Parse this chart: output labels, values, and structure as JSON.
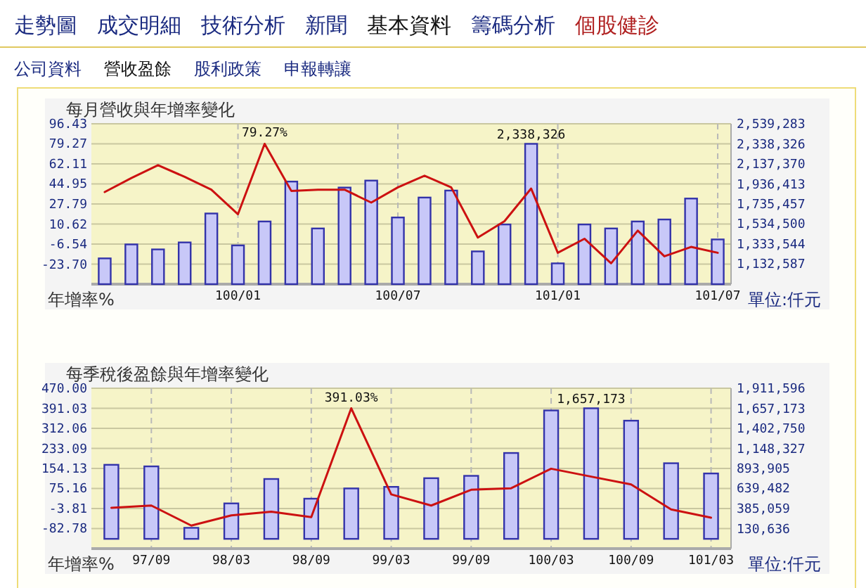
{
  "chart_data": [
    {
      "type": "other",
      "annotations": [
        "走勢圖",
        "成交明細",
        "技術分析",
        "新聞",
        "基本資料",
        "籌碼分析",
        "個股健診",
        "公司資料",
        "營收盈餘",
        "股利政策",
        "申報轉讓"
      ]
    },
    {
      "type": "bar",
      "title": "每月營收與年增率變化",
      "ylabel": "年增率%",
      "y2label": "單位:仟元",
      "grid": true,
      "categories": [
        null,
        null,
        null,
        null,
        null,
        "100/01",
        null,
        null,
        null,
        null,
        null,
        "100/07",
        null,
        null,
        null,
        null,
        null,
        "101/01",
        null,
        null,
        null,
        null,
        null,
        "101/07"
      ],
      "ylim": [
        -40.86,
        96.43
      ],
      "yticks": [
        {
          "value": -23.7,
          "label": "-23.70"
        },
        -6.54,
        10.62,
        27.79,
        44.95,
        62.11,
        79.27,
        96.43
      ],
      "y2lim": [
        931630,
        2539283
      ],
      "y2ticks": [
        {
          "value": 1132587,
          "label": "1,132,587"
        },
        {
          "value": 1333544,
          "label": "1,333,544"
        },
        {
          "value": 1534500,
          "label": "1,534,500"
        },
        {
          "value": 1735457,
          "label": "1,735,457"
        },
        {
          "value": 1936413,
          "label": "1,936,413"
        },
        {
          "value": 2137370,
          "label": "2,137,370"
        },
        {
          "value": 2338326,
          "label": "2,338,326"
        },
        {
          "value": 2539283,
          "label": "2,539,283"
        }
      ],
      "series": [
        {
          "type": "bar",
          "axis": "y2",
          "color": "#c8c8f8",
          "values": [
            1190000,
            1330000,
            1280000,
            1350000,
            1640000,
            1320000,
            1560000,
            1960000,
            1490000,
            1900000,
            1970000,
            1600000,
            1800000,
            1870000,
            1260000,
            1530000,
            2338326,
            1140000,
            1530000,
            1490000,
            1560000,
            1580000,
            1790000,
            1380000
          ],
          "value_labels": [
            null,
            null,
            null,
            null,
            null,
            null,
            null,
            null,
            null,
            null,
            null,
            null,
            null,
            null,
            null,
            null,
            "2,338,326",
            null,
            null,
            null,
            null,
            null,
            null,
            null
          ]
        },
        {
          "type": "line",
          "axis": "y",
          "color": "#cc1111",
          "values": [
            38,
            50,
            61,
            51,
            40,
            19,
            79.27,
            39,
            40,
            40,
            29,
            42,
            52,
            42,
            -1,
            13,
            41,
            -14,
            -2,
            -23,
            5,
            -17,
            -9,
            -14
          ],
          "value_labels": [
            null,
            null,
            null,
            null,
            null,
            null,
            "79.27%",
            null,
            null,
            null,
            null,
            null,
            null,
            null,
            null,
            null,
            null,
            null,
            null,
            null,
            null,
            null,
            null,
            null
          ]
        }
      ]
    },
    {
      "type": "bar",
      "title": "每季稅後盈餘與年增率變化",
      "ylabel": "年增率%",
      "y2label": "單位:仟元",
      "grid": true,
      "categories": [
        null,
        "97/09",
        null,
        "98/03",
        null,
        "98/09",
        null,
        "99/03",
        null,
        "99/09",
        null,
        "100/03",
        null,
        "100/09",
        null,
        "101/03"
      ],
      "ylim": [
        -161.75,
        470
      ],
      "yticks": [
        {
          "value": -82.78,
          "label": "-82.78"
        },
        -3.81,
        75.16,
        154.13,
        233.09,
        312.06,
        391.03,
        {
          "value": 470,
          "label": "470.00"
        }
      ],
      "y2lim": [
        -123787,
        1911596
      ],
      "y2ticks": [
        {
          "value": 130636,
          "label": "130,636"
        },
        {
          "value": 385059,
          "label": "385,059"
        },
        {
          "value": 639482,
          "label": "639,482"
        },
        {
          "value": 893905,
          "label": "893,905"
        },
        {
          "value": 1148327,
          "label": "1,148,327"
        },
        {
          "value": 1402750,
          "label": "1,402,750"
        },
        {
          "value": 1657173,
          "label": "1,657,173"
        },
        {
          "value": 1911596,
          "label": "1,911,596"
        }
      ],
      "series": [
        {
          "type": "bar",
          "axis": "y2",
          "color": "#c8c8f8",
          "values": [
            940000,
            920000,
            140000,
            450000,
            760000,
            510000,
            640000,
            660000,
            770000,
            800000,
            1090000,
            1630000,
            1657173,
            1500000,
            960000,
            830000
          ],
          "value_labels": [
            null,
            null,
            null,
            null,
            null,
            null,
            null,
            null,
            null,
            null,
            null,
            null,
            "1,657,173",
            null,
            null,
            null
          ]
        },
        {
          "type": "line",
          "axis": "y",
          "color": "#cc1111",
          "values": [
            -1,
            8,
            -71,
            -31,
            -16,
            -38,
            391.03,
            52,
            8,
            70,
            76,
            153,
            122,
            91,
            -7,
            -40
          ],
          "value_labels": [
            null,
            null,
            null,
            null,
            null,
            null,
            "391.03%",
            null,
            null,
            null,
            null,
            null,
            null,
            null,
            null,
            null
          ]
        }
      ]
    }
  ]
}
